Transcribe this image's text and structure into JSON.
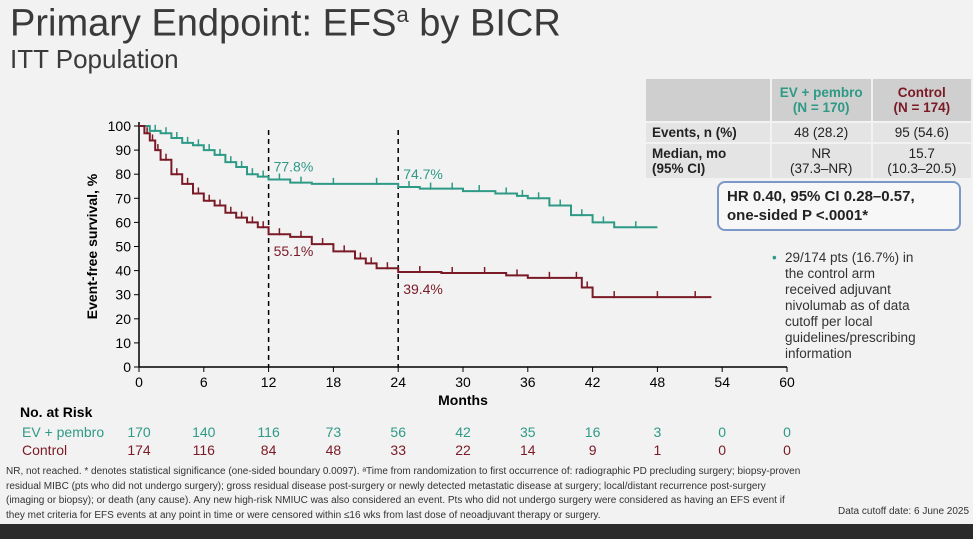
{
  "title": "Primary Endpoint: EFS",
  "title_sup": "a",
  "title_suffix": " by BICR",
  "subtitle": "ITT Population",
  "table": {
    "headers": [
      "",
      "EV + pembro (N = 170)",
      "Control (N = 174)"
    ],
    "ev_header": [
      "EV + pembro",
      "(N = 170)"
    ],
    "ctrl_header": [
      "Control",
      "(N = 174)"
    ],
    "rows": [
      {
        "label": "Events, n (%)",
        "ev": "48 (28.2)",
        "ctrl": "95 (54.6)"
      },
      {
        "label": "Median, mo",
        "label2": "(95% CI)",
        "ev": "NR",
        "ev2": "(37.3–NR)",
        "ctrl": "15.7",
        "ctrl2": "(10.3–20.5)"
      }
    ]
  },
  "hr_box": {
    "line1": "HR 0.40, 95% CI 0.28–0.57,",
    "line2": "one-sided P <.0001*"
  },
  "note": "29/174 pts (16.7%) in the control arm received adjuvant nivolumab as of data cutoff per local guidelines/prescribing information",
  "colors": {
    "ev": "#2e9a86",
    "control": "#7a1a26"
  },
  "chart_data": {
    "type": "line",
    "xlabel": "Months",
    "ylabel": "Event-free survival, %",
    "xlim": [
      0,
      60
    ],
    "ylim": [
      0,
      100
    ],
    "xticks": [
      0,
      6,
      12,
      18,
      24,
      30,
      36,
      42,
      48,
      54,
      60
    ],
    "yticks": [
      0,
      10,
      20,
      30,
      40,
      50,
      60,
      70,
      80,
      90,
      100
    ],
    "reference_lines": [
      12,
      24
    ],
    "series": [
      {
        "name": "EV + pembro",
        "color": "#2e9a86",
        "x": [
          0,
          1,
          2,
          3,
          4,
          5,
          6,
          7,
          8,
          9,
          10,
          11,
          12,
          14,
          16,
          20,
          24,
          26,
          28,
          30,
          33,
          35,
          36,
          38,
          40,
          42,
          44,
          48
        ],
        "y": [
          100,
          98,
          97,
          95,
          93,
          92,
          90,
          88,
          85,
          83,
          80,
          79,
          77.8,
          76.5,
          76,
          76,
          74.7,
          74,
          74,
          73,
          72,
          71,
          70,
          67,
          63,
          60,
          58,
          58
        ]
      },
      {
        "name": "Control",
        "color": "#7a1a26",
        "x": [
          0,
          0.5,
          1,
          1.5,
          2,
          3,
          4,
          5,
          6,
          7,
          8,
          9,
          10,
          11,
          12,
          14,
          16,
          18,
          20,
          21,
          22,
          24,
          28,
          30,
          34,
          36,
          40,
          41,
          42,
          46,
          50,
          53
        ],
        "y": [
          100,
          97,
          94,
          90,
          86,
          80,
          76,
          72,
          69,
          67,
          64,
          62,
          60,
          58,
          55.1,
          54,
          51,
          48,
          45,
          43,
          41,
          39.4,
          39,
          39,
          38,
          37,
          37,
          33,
          29,
          29,
          29,
          29
        ]
      }
    ],
    "annotations": [
      {
        "text": "77.8%",
        "x": 12,
        "series": "EV + pembro"
      },
      {
        "text": "74.7%",
        "x": 24,
        "series": "EV + pembro"
      },
      {
        "text": "55.1%",
        "x": 12,
        "series": "Control"
      },
      {
        "text": "39.4%",
        "x": 24,
        "series": "Control"
      }
    ],
    "at_risk": {
      "title": "No. at Risk",
      "rows": [
        {
          "name": "EV + pembro",
          "values": [
            "170",
            "140",
            "116",
            "73",
            "56",
            "42",
            "35",
            "16",
            "3",
            "0",
            "0"
          ]
        },
        {
          "name": "Control",
          "values": [
            "174",
            "116",
            "84",
            "48",
            "33",
            "22",
            "14",
            "9",
            "1",
            "0",
            "0"
          ]
        }
      ]
    }
  },
  "footnote": "NR, not reached. * denotes statistical significance (one-sided boundary 0.0097). ᵃTime from randomization to first occurrence of: radiographic PD precluding surgery; biopsy-proven residual MIBC (pts who did not undergo surgery); gross residual disease post-surgery or newly detected metastatic disease at surgery; local/distant recurrence post-surgery (imaging or biopsy); or death (any cause). Any new high-risk NMIUC was also considered an event. Pts who did not undergo surgery were considered as having an EFS event if they met criteria for EFS events at any point in time or were censored within ≤16 wks from last dose of neoadjuvant therapy or surgery.",
  "cutoff": "Data cutoff date: 6 June 2025"
}
